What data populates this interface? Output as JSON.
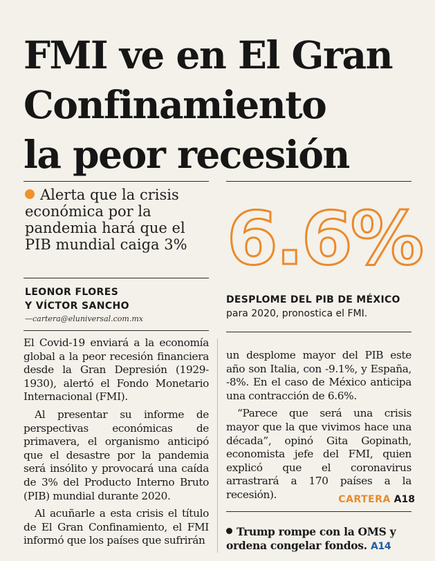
{
  "headline": {
    "line1": "FMI ve en El Gran",
    "line2": "Confinamiento",
    "line3": "la peor recesión"
  },
  "deck": {
    "text": "Alerta que la crisis económica por la pandemia hará que el PIB mundial caiga 3%"
  },
  "highlight": {
    "number": "6.6%",
    "title": "DESPLOME DEL PIB DE MÉXICO",
    "subtitle": "para 2020, pronostica el FMI.",
    "accent_color": "#e98a2c"
  },
  "byline": {
    "line1": "LEONOR FLORES",
    "line2": "Y VÍCTOR SANCHO",
    "email": "—cartera@eluniversal.com.mx"
  },
  "body": {
    "left": [
      "El Covid-19 enviará a la economía global a la peor recesión financiera desde la Gran Depresión (1929-1930), alertó el Fondo Monetario Internacional (FMI).",
      "Al presentar su informe de perspectivas económicas de primavera, el organismo anticipó que el desastre por la pandemia será insólito y provocará una caída de 3% del Producto Interno Bruto (PIB) mundial durante 2020.",
      "Al acuñarle a esta crisis el título de El Gran Confinamiento, el FMI informó que los países que sufrirán"
    ],
    "right": [
      "un desplome mayor del PIB este año son Italia, con -9.1%, y España, -8%. En el caso de México anticipa una contracción de 6.6%.",
      "“Parece que será una crisis mayor que la que vivimos hace una década”, opinó Gita Gopinath, economista jefe del FMI, quien explicó que el coronavirus arrastrará a 170 países a la recesión)."
    ]
  },
  "page_ref": {
    "section": "CARTERA",
    "page": "A18"
  },
  "teaser": {
    "text": "Trump rompe con la OMS y ordena congelar fondos.",
    "ref": "A14"
  }
}
